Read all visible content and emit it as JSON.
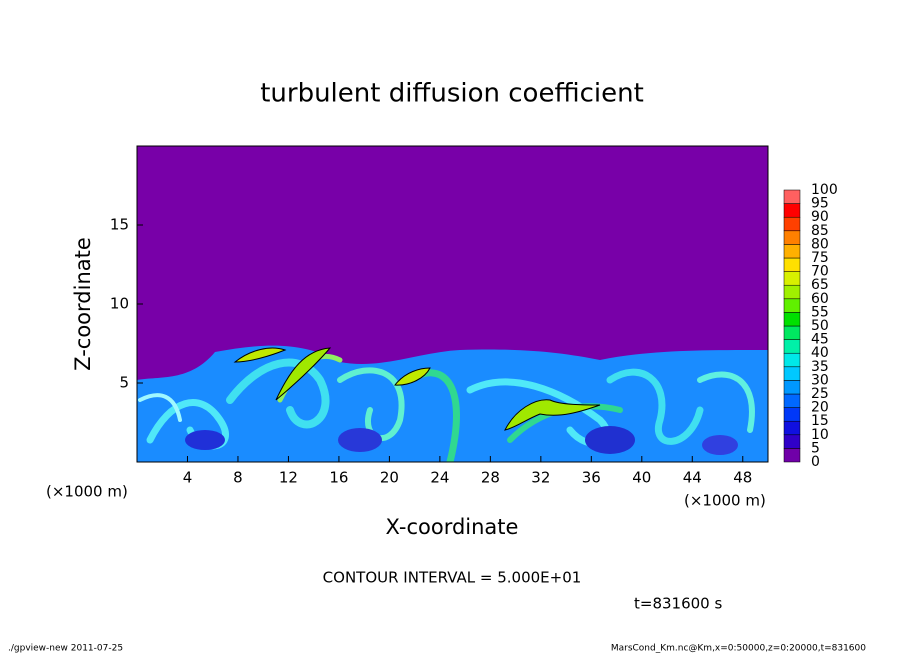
{
  "chart_data": {
    "type": "contour",
    "title": "turbulent diffusion coefficient",
    "xlabel": "X-coordinate",
    "ylabel": "Z-coordinate",
    "x_unit": "(×1000 m)",
    "xlim": [
      0,
      50
    ],
    "xticks": [
      4,
      8,
      12,
      16,
      20,
      24,
      28,
      32,
      36,
      40,
      44,
      48
    ],
    "ylim": [
      0,
      20
    ],
    "yticks": [
      5,
      10,
      15
    ],
    "contour_note": "CONTOUR INTERVAL = 5.000E+01",
    "time_label": "t=831600 s",
    "footer_left": "./gpview-new   2011-07-25",
    "footer_right": "MarsCond_Km.nc@Km,x=0:50000,z=0:20000,t=831600",
    "background_color": "#7800a8",
    "colorbar": {
      "levels": [
        0,
        5,
        10,
        15,
        20,
        25,
        30,
        35,
        40,
        45,
        50,
        55,
        60,
        65,
        70,
        75,
        80,
        85,
        90,
        95,
        100
      ],
      "colors": [
        "#7000a8",
        "#3000c8",
        "#1010e0",
        "#0038f8",
        "#0068ff",
        "#0098ff",
        "#00c8ff",
        "#00e8e8",
        "#00f0a8",
        "#00e860",
        "#00e000",
        "#60f000",
        "#a0f000",
        "#d8f000",
        "#ffe000",
        "#ffb000",
        "#ff8000",
        "#ff4000",
        "#ff0000",
        "#ff6060"
      ]
    }
  }
}
